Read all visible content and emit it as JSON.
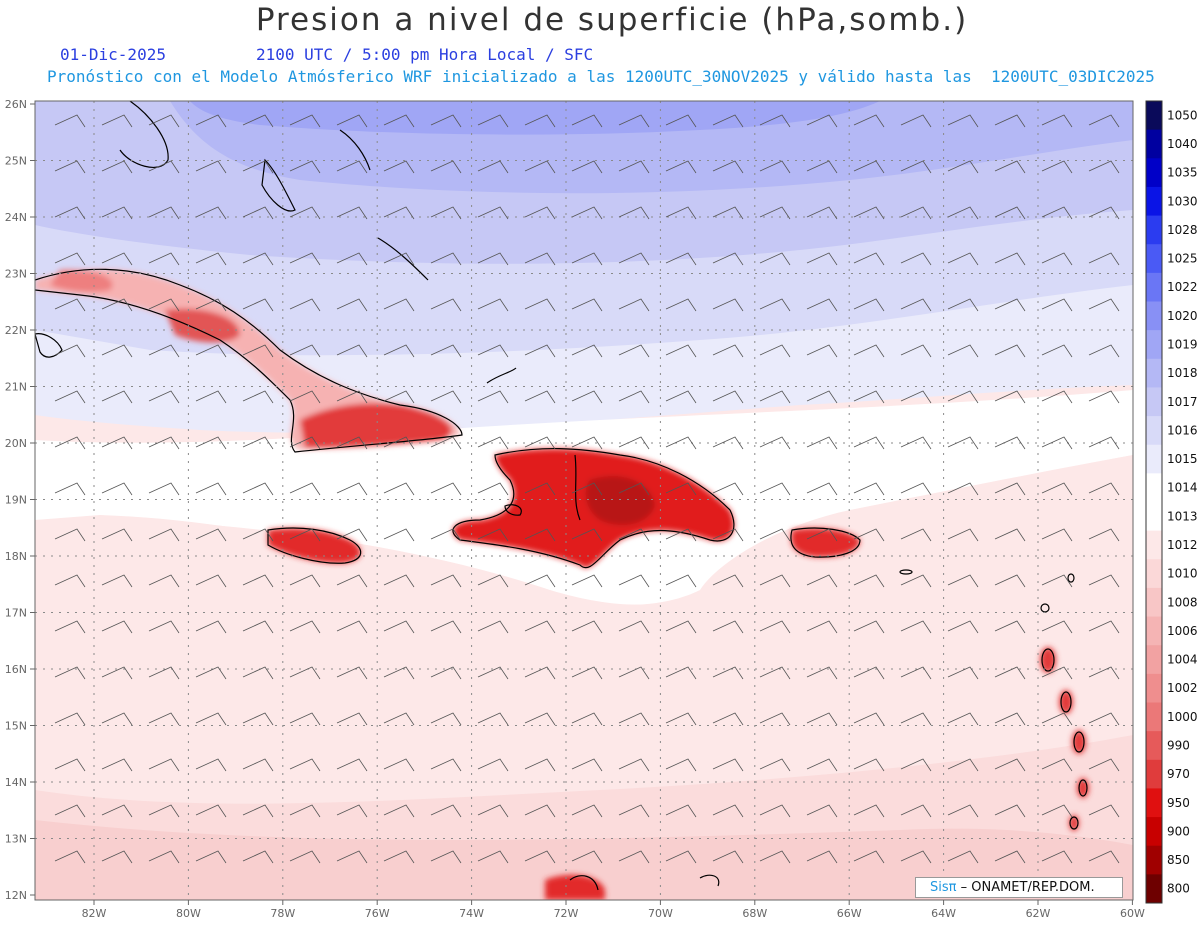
{
  "title": "Presion a nivel de superficie (hPa,somb.)",
  "date": "01-Dic-2025",
  "time_info": "2100 UTC / 5:00 pm Hora Local / SFC",
  "forecast_info": "Pronóstico con el Modelo Atmósferico WRF inicializado a las 1200UTC_30NOV2025 y válido hasta las  1200UTC_03DIC2025",
  "map": {
    "lat_labels": [
      "26N",
      "25N",
      "24N",
      "23N",
      "22N",
      "21N",
      "20N",
      "19N",
      "18N",
      "17N",
      "16N",
      "15N",
      "14N",
      "13N",
      "12N"
    ],
    "lon_labels": [
      "82W",
      "80W",
      "78W",
      "76W",
      "74W",
      "72W",
      "70W",
      "68W",
      "66W",
      "64W",
      "62W",
      "60W"
    ],
    "lat_range": [
      12,
      26
    ],
    "lon_range": [
      -83.3,
      -60
    ]
  },
  "colorbar": {
    "labels": [
      "1050",
      "1040",
      "1035",
      "1030",
      "1028",
      "1025",
      "1022",
      "1020",
      "1019",
      "1018",
      "1017",
      "1016",
      "1015",
      "1014",
      "1013",
      "1012",
      "1010",
      "1008",
      "1006",
      "1004",
      "1002",
      "1000",
      "990",
      "970",
      "950",
      "900",
      "850",
      "800"
    ],
    "colors": [
      "#0a0a5a",
      "#0000a0",
      "#0000c8",
      "#0a14e6",
      "#2b3cf0",
      "#4a5af5",
      "#6a76f5",
      "#8890f5",
      "#a0a6f5",
      "#b4b8f5",
      "#c6c8f5",
      "#d8daf8",
      "#eaebfb",
      "#ffffff",
      "#ffffff",
      "#fde8e8",
      "#fbd8d8",
      "#f8c6c6",
      "#f5b4b4",
      "#f2a2a2",
      "#ef8e8e",
      "#eb7878",
      "#e65a5a",
      "#e03c3c",
      "#e01010",
      "#c80000",
      "#a00000",
      "#6e0000"
    ]
  },
  "credit": {
    "logo": "Sisπ",
    "text": " – ONAMET/REP.DOM."
  }
}
